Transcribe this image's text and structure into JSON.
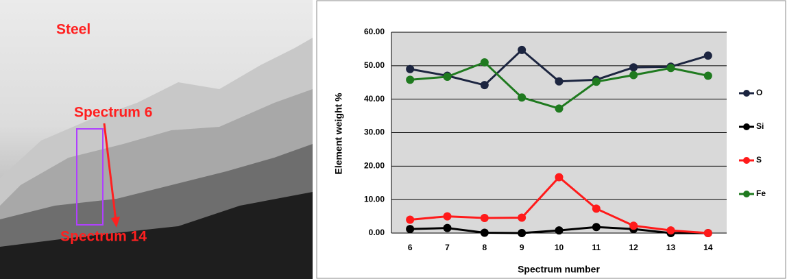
{
  "micrograph": {
    "labels": [
      "Steel",
      "Spectrum 6",
      "Spectrum 14"
    ]
  },
  "chart_data": {
    "type": "line",
    "xlabel": "Spectrum number",
    "ylabel": "Element weight %",
    "categories": [
      "6",
      "7",
      "8",
      "9",
      "10",
      "11",
      "12",
      "13",
      "14"
    ],
    "series": [
      {
        "name": "O",
        "color": "#1c2540",
        "values": [
          49,
          47,
          44.2,
          54.7,
          45.3,
          45.8,
          49.5,
          49.7,
          53
        ]
      },
      {
        "name": "Si",
        "color": "#000000",
        "values": [
          1.2,
          1.5,
          0.1,
          0,
          0.8,
          1.8,
          1.2,
          0,
          0
        ]
      },
      {
        "name": "S",
        "color": "#ff1a1a",
        "values": [
          4,
          5,
          4.5,
          4.6,
          16.7,
          7.3,
          2.2,
          0.8,
          0
        ]
      },
      {
        "name": "Fe",
        "color": "#1f7a1f",
        "values": [
          45.8,
          46.7,
          51,
          40.5,
          37.2,
          45.2,
          47.2,
          49.3,
          47
        ]
      }
    ],
    "ylim": [
      0,
      60
    ],
    "yticks": [
      {
        "value": 0,
        "label": "0.00"
      },
      {
        "value": 10,
        "label": "10.00"
      },
      {
        "value": 20,
        "label": "20.00"
      },
      {
        "value": 30,
        "label": "30.00"
      },
      {
        "value": 40,
        "label": "40.00"
      },
      {
        "value": 50,
        "label": "50.00"
      },
      {
        "value": 60,
        "label": "60.00"
      }
    ],
    "grid": true,
    "legend": "right"
  }
}
